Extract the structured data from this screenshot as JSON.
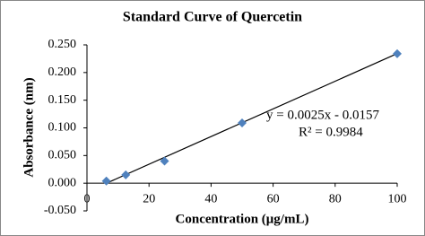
{
  "chart_data": {
    "type": "scatter",
    "title": "Standard Curve of Quercetin",
    "x_label": "Concentration (μg/mL)",
    "y_label": "Absorbance (nm)",
    "x": [
      6.25,
      12.5,
      25,
      50,
      100
    ],
    "values": [
      0.004,
      0.015,
      0.04,
      0.109,
      0.234
    ],
    "color": "#4f81bd",
    "xlim": [
      0,
      100
    ],
    "xticks": [
      0,
      20,
      40,
      60,
      80,
      100
    ],
    "ylim": [
      -0.05,
      0.25
    ],
    "yticks": [
      {
        "value": -0.05,
        "label": "-0.050"
      },
      {
        "value": 0,
        "label": "0.000"
      },
      {
        "value": 0.05,
        "label": "0.050"
      },
      {
        "value": 0.1,
        "label": "0.100"
      },
      {
        "value": 0.15,
        "label": "0.150"
      },
      {
        "value": 0.2,
        "label": "0.200"
      },
      {
        "value": 0.25,
        "label": "0.250"
      }
    ],
    "grid": false,
    "trendline": {
      "slope": 0.0025,
      "intercept": -0.0157,
      "equation": "y = 0.0025x - 0.0157",
      "r_squared": "R² = 0.9984",
      "color": "#000000"
    }
  }
}
